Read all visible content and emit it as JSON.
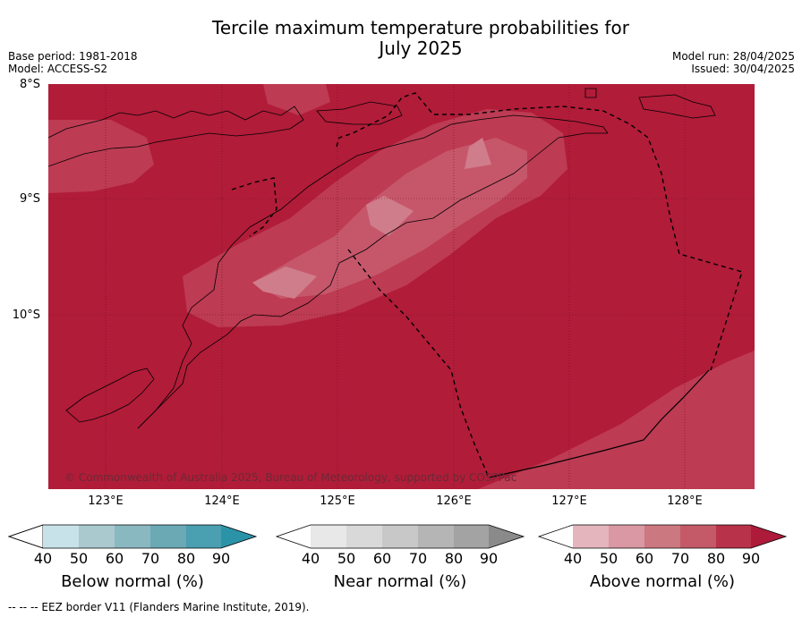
{
  "title_line1": "Tercile maximum temperature probabilities for",
  "title_line2": "July 2025",
  "base_period": "Base period: 1981-2018",
  "model": "Model: ACCESS-S2",
  "model_run": "Model run: 28/04/2025",
  "issued": "Issued: 30/04/2025",
  "lat_labels": [
    "8°S",
    "9°S",
    "10°S"
  ],
  "lon_labels": [
    "123°E",
    "124°E",
    "125°E",
    "126°E",
    "127°E",
    "128°E"
  ],
  "copyright": "© Commonwealth of Australia 2025, Bureau of Meteorology, supported by COSPPac",
  "footer": "--  --  -- EEZ border V11 (Flanders Marine Institute, 2019).",
  "legends": [
    {
      "label": "Below normal (%)",
      "ticks": [
        "40",
        "50",
        "60",
        "70",
        "80",
        "90"
      ],
      "colors": [
        "#ffffff",
        "#c8e2e9",
        "#a9c9cf",
        "#8ab8c1",
        "#6ba9b5",
        "#4a9fb0",
        "#2b93a8"
      ]
    },
    {
      "label": "Near normal (%)",
      "ticks": [
        "40",
        "50",
        "60",
        "70",
        "80",
        "90"
      ],
      "colors": [
        "#ffffff",
        "#e8e8e8",
        "#d9d9d9",
        "#c8c8c8",
        "#b5b5b5",
        "#a3a3a3",
        "#8a8a8a"
      ]
    },
    {
      "label": "Above normal (%)",
      "ticks": [
        "40",
        "50",
        "60",
        "70",
        "80",
        "90"
      ],
      "colors": [
        "#ffffff",
        "#e4b5bd",
        "#d998a3",
        "#cc7880",
        "#c45a68",
        "#b8324a",
        "#ad1a3a"
      ]
    }
  ],
  "map_colors": {
    "above_90": "#b11c39",
    "above_80": "#bd3b53",
    "above_70": "#c6576b",
    "above_60": "#d07d8b"
  }
}
